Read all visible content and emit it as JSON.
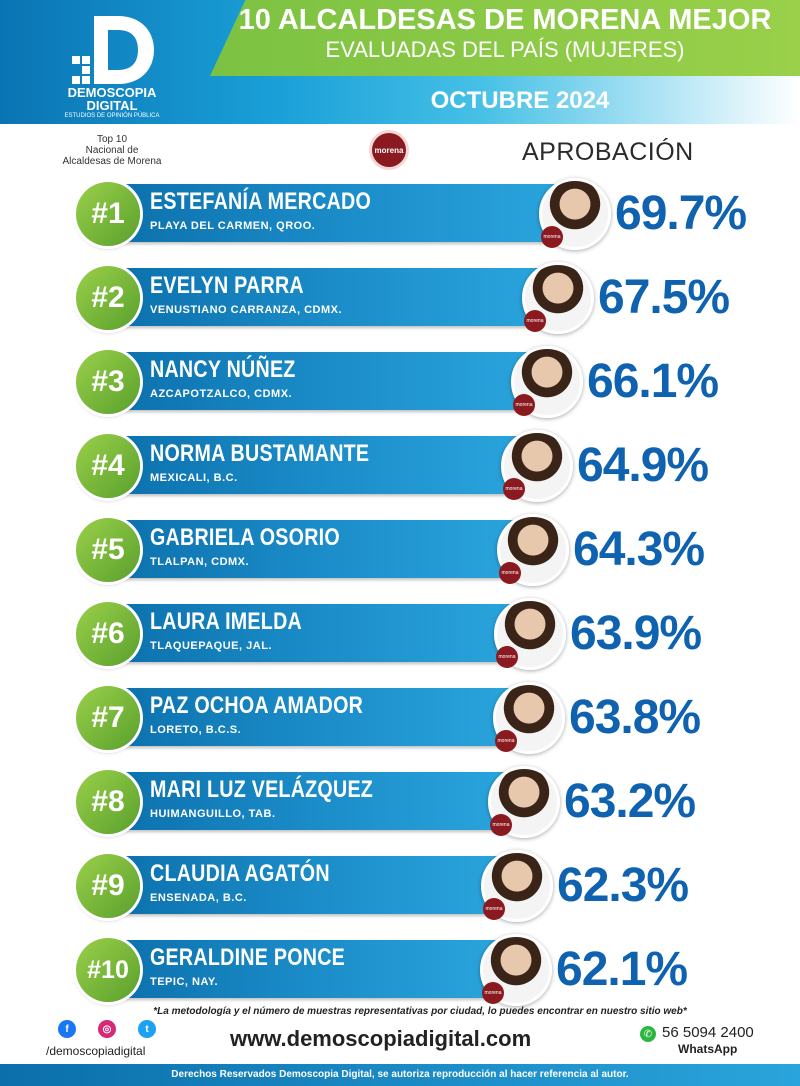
{
  "header": {
    "title": "10 ALCALDESAS DE MORENA MEJOR",
    "subtitle": "EVALUADAS DEL PAÍS (MUJERES)",
    "date": "OCTUBRE 2024",
    "logo": {
      "line1": "DEMOSCOPIA",
      "line2": "DIGITAL",
      "line3": "ESTUDIOS DE OPINIÓN PÚBLICA",
      "mark": "D"
    },
    "top10": [
      "Top 10",
      "Nacional de",
      "Alcaldesas de Morena"
    ],
    "party_badge": "morena",
    "approval_label": "APROBACIÓN"
  },
  "chart_data": {
    "type": "table",
    "columns": [
      "rank",
      "name",
      "city",
      "approval"
    ],
    "unit": "%",
    "rows": [
      {
        "rank": "#1",
        "name": "ESTEFANÍA MERCADO",
        "city": "PLAYA DEL CARMEN, QROO.",
        "value": 69.7,
        "label": "69.7%"
      },
      {
        "rank": "#2",
        "name": "EVELYN PARRA",
        "city": "VENUSTIANO CARRANZA, CDMX.",
        "value": 67.5,
        "label": "67.5%"
      },
      {
        "rank": "#3",
        "name": "NANCY NÚÑEZ",
        "city": "AZCAPOTZALCO, CDMX.",
        "value": 66.1,
        "label": "66.1%"
      },
      {
        "rank": "#4",
        "name": "NORMA BUSTAMANTE",
        "city": "MEXICALI, B.C.",
        "value": 64.9,
        "label": "64.9%"
      },
      {
        "rank": "#5",
        "name": "GABRIELA OSORIO",
        "city": "TLALPAN, CDMX.",
        "value": 64.3,
        "label": "64.3%"
      },
      {
        "rank": "#6",
        "name": "LAURA IMELDA",
        "city": "TLAQUEPAQUE, JAL.",
        "value": 63.9,
        "label": "63.9%"
      },
      {
        "rank": "#7",
        "name": "PAZ OCHOA AMADOR",
        "city": "LORETO, B.C.S.",
        "value": 63.8,
        "label": "63.8%"
      },
      {
        "rank": "#8",
        "name": "MARI LUZ VELÁZQUEZ",
        "city": "HUIMANGUILLO, TAB.",
        "value": 63.2,
        "label": "63.2%"
      },
      {
        "rank": "#9",
        "name": "CLAUDIA AGATÓN",
        "city": "ENSENADA, B.C.",
        "value": 62.3,
        "label": "62.3%"
      },
      {
        "rank": "#10",
        "name": "GERALDINE PONCE",
        "city": "TEPIC, NAY.",
        "value": 62.1,
        "label": "62.1%"
      }
    ]
  },
  "footer": {
    "methodology": "*La metodología y el número de muestras representativas por ciudad, lo puedes encontrar en nuestro sitio web*",
    "handle": "/demoscopiadigital",
    "website": "www.demoscopiadigital.com",
    "phone": "56 5094 2400",
    "whatsapp": "WhatsApp",
    "rights": "Derechos Reservados Demoscopia Digital, se autoriza reproducción al hacer referencia al autor."
  },
  "colors": {
    "bar": "#1a8bc7",
    "rank": "#7cc242",
    "value": "#0f62b0",
    "party": "#8a1a1f"
  },
  "icons": [
    "facebook-icon",
    "instagram-icon",
    "twitter-icon",
    "whatsapp-icon"
  ]
}
